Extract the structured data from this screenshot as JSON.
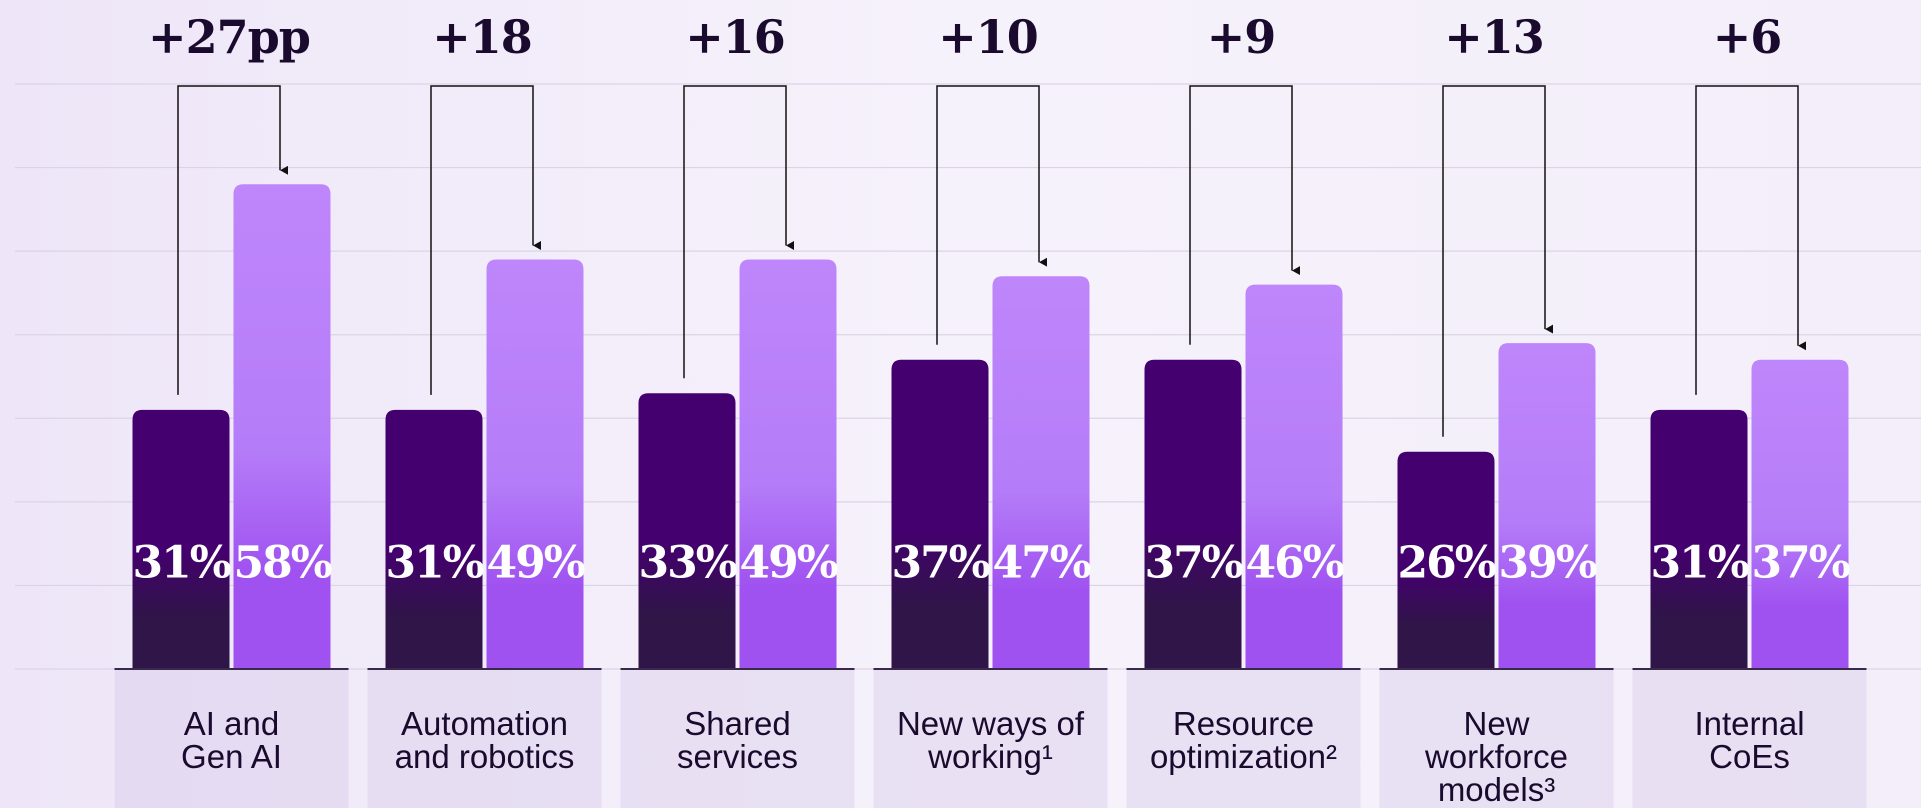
{
  "chart_data": {
    "type": "bar",
    "categories": [
      "AI and\nGen AI",
      "Automation\nand robotics",
      "Shared\nservices",
      "New ways of\nworking¹",
      "Resource\noptimization²",
      "New\nworkforce\nmodels³",
      "Internal\nCoEs"
    ],
    "series": [
      {
        "color": "#44006e",
        "values": [
          31,
          31,
          33,
          37,
          37,
          26,
          31
        ],
        "value_labels": [
          "31%",
          "31%",
          "33%",
          "37%",
          "37%",
          "26%",
          "31%"
        ]
      },
      {
        "color": "#bf86fb",
        "values": [
          58,
          49,
          49,
          47,
          46,
          39,
          37
        ],
        "value_labels": [
          "58%",
          "49%",
          "49%",
          "47%",
          "46%",
          "39%",
          "37%"
        ]
      }
    ],
    "annotations": [
      "+27pp",
      "+18",
      "+16",
      "+10",
      "+9",
      "+13",
      "+6"
    ],
    "ylim": [
      0,
      70
    ],
    "yticks": [
      0,
      10,
      20,
      30,
      40,
      50,
      60,
      70
    ],
    "grid": true
  }
}
